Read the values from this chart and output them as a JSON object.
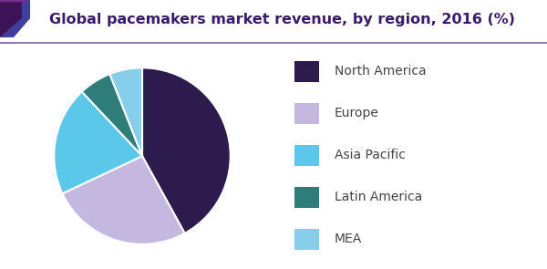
{
  "title": "Global pacemakers market revenue, by region, 2016 (%)",
  "slices": [
    {
      "label": "North America",
      "value": 42,
      "color": "#2d1b4e"
    },
    {
      "label": "Europe",
      "value": 26,
      "color": "#c5b8e0"
    },
    {
      "label": "Asia Pacific",
      "value": 20,
      "color": "#5bc8ea"
    },
    {
      "label": "Latin America",
      "value": 6,
      "color": "#2e7d7a"
    },
    {
      "label": "MEA",
      "value": 6,
      "color": "#87ceeb"
    }
  ],
  "title_color": "#3b1a6b",
  "title_fontsize": 11.5,
  "background_color": "#ffffff",
  "header_purple": "#6a1b8a",
  "header_dark_purple": "#3d1357",
  "header_blue": "#3f3fa0",
  "divider_color": "#7b5ea7",
  "legend_fontsize": 10
}
